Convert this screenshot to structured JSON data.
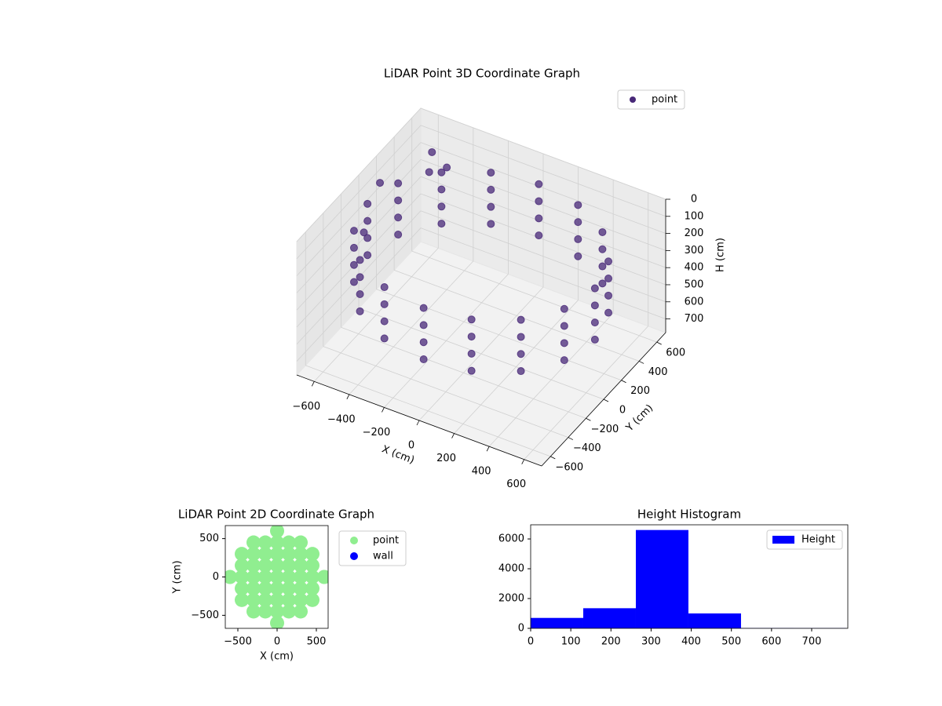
{
  "chart_data": [
    {
      "type": "scatter3d",
      "title": "LiDAR Point 3D Coordinate Graph",
      "xlabel": "X (cm)",
      "ylabel": "Y (cm)",
      "zlabel": "H (cm)",
      "xlim": [
        -700,
        700
      ],
      "ylim": [
        -700,
        700
      ],
      "zlim": [
        0,
        780
      ],
      "zinverted": true,
      "grid": true,
      "legend": "upper right",
      "xticks": [
        {
          "value": -600,
          "label": "−600"
        },
        {
          "value": -400,
          "label": "−400"
        },
        {
          "value": -200,
          "label": "−200"
        },
        0,
        200,
        400,
        600
      ],
      "yticks": [
        {
          "value": -600,
          "label": "−600"
        },
        {
          "value": -400,
          "label": "−400"
        },
        {
          "value": -200,
          "label": "−200"
        },
        0,
        200,
        400,
        600
      ],
      "zticks": [
        0,
        100,
        200,
        300,
        400,
        500,
        600,
        700
      ],
      "series": [
        {
          "name": "point",
          "color": "#482878",
          "x": [
            650,
            601,
            460,
            249,
            0,
            -249,
            -460,
            -601,
            -650,
            -601,
            -460,
            -249,
            0,
            249,
            460,
            601,
            650,
            601,
            460,
            249,
            0,
            -249,
            -460,
            -601,
            -650,
            -601,
            -460,
            -249,
            0,
            249,
            460,
            601,
            650,
            601,
            460,
            249,
            0,
            -249,
            -460,
            -601,
            -650,
            -601,
            -460,
            -249,
            0,
            249,
            460,
            601,
            650,
            601,
            460,
            249,
            0,
            -249,
            -460,
            -601,
            -650,
            -601,
            -460,
            -249,
            0,
            249,
            460,
            601,
            -680,
            -620,
            -560,
            -500,
            -450
          ],
          "y": [
            0,
            249,
            460,
            601,
            650,
            601,
            460,
            249,
            0,
            -249,
            -460,
            -601,
            -650,
            -601,
            -460,
            -249,
            0,
            249,
            460,
            601,
            650,
            601,
            460,
            249,
            0,
            -249,
            -460,
            -601,
            -650,
            -601,
            -460,
            -249,
            0,
            249,
            460,
            601,
            650,
            601,
            460,
            249,
            0,
            -249,
            -460,
            -601,
            -650,
            -601,
            -460,
            -249,
            0,
            249,
            460,
            601,
            650,
            601,
            460,
            249,
            0,
            -249,
            -460,
            -601,
            -650,
            -601,
            -460,
            -249,
            200,
            -100,
            550,
            400,
            500
          ],
          "z": [
            150,
            150,
            150,
            150,
            150,
            150,
            150,
            150,
            150,
            150,
            150,
            150,
            150,
            150,
            150,
            150,
            250,
            250,
            250,
            250,
            250,
            250,
            250,
            250,
            250,
            250,
            250,
            250,
            250,
            250,
            250,
            250,
            350,
            350,
            350,
            350,
            350,
            350,
            350,
            350,
            350,
            350,
            350,
            350,
            350,
            350,
            350,
            350,
            450,
            450,
            450,
            450,
            450,
            450,
            450,
            450,
            450,
            450,
            450,
            450,
            450,
            450,
            450,
            450,
            150,
            250,
            120,
            130,
            140
          ]
        }
      ]
    },
    {
      "type": "scatter",
      "title": "LiDAR Point 2D Coordinate Graph",
      "xlabel": "X (cm)",
      "ylabel": "Y (cm)",
      "xlim": [
        -660,
        650
      ],
      "ylim": [
        -670,
        670
      ],
      "legend": "outside right",
      "xticks": [
        {
          "value": -500,
          "label": "−500"
        },
        0,
        500
      ],
      "yticks": [
        {
          "value": -500,
          "label": "−500"
        },
        0,
        500
      ],
      "series": [
        {
          "name": "point",
          "color": "#90ee90",
          "x": [
            -600,
            -450,
            -450,
            -450,
            -450,
            -450,
            -300,
            -300,
            -300,
            -300,
            -300,
            -300,
            -300,
            -150,
            -150,
            -150,
            -150,
            -150,
            -150,
            -150,
            0,
            0,
            0,
            0,
            0,
            0,
            0,
            0,
            0,
            150,
            150,
            150,
            150,
            150,
            150,
            150,
            300,
            300,
            300,
            300,
            300,
            300,
            300,
            450,
            450,
            450,
            450,
            450,
            600
          ],
          "y": [
            0,
            -300,
            -150,
            0,
            150,
            300,
            -450,
            -300,
            -150,
            0,
            150,
            300,
            450,
            -450,
            -300,
            -150,
            0,
            150,
            300,
            450,
            -600,
            -450,
            -300,
            -150,
            0,
            150,
            300,
            450,
            600,
            -450,
            -300,
            -150,
            0,
            150,
            300,
            450,
            -450,
            -300,
            -150,
            0,
            150,
            300,
            450,
            -300,
            -150,
            0,
            150,
            300,
            0
          ]
        },
        {
          "name": "wall",
          "color": "#0000ff",
          "x": [],
          "y": []
        }
      ]
    },
    {
      "type": "histogram",
      "title": "Height Histogram",
      "legend": "upper right",
      "bins": [
        0,
        131,
        262,
        393,
        524,
        655,
        786
      ],
      "xlim": [
        0,
        790
      ],
      "ylim": [
        0,
        6950
      ],
      "xticks": [
        0,
        100,
        200,
        300,
        400,
        500,
        600,
        700
      ],
      "yticks": [
        0,
        2000,
        4000,
        6000
      ],
      "series": [
        {
          "name": "Height",
          "color": "#0000ff",
          "values": [
            700,
            1350,
            6600,
            1000,
            20,
            15
          ]
        }
      ]
    }
  ]
}
